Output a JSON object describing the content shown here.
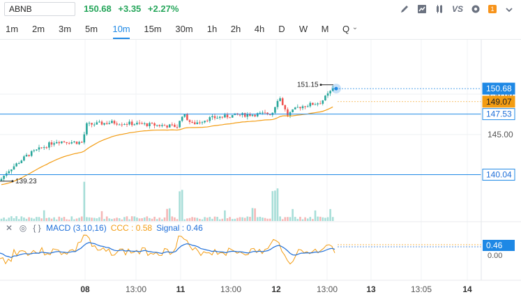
{
  "header": {
    "symbol": "ABNB",
    "price": "150.68",
    "change": "+3.35",
    "change_pct": "+2.27%"
  },
  "toolbar": {
    "icons": [
      "pencil-icon",
      "area-chart-icon",
      "candles-icon",
      "compare-icon",
      "settings-icon",
      "alert-icon"
    ],
    "compare_label": "VS",
    "alert_count": "1"
  },
  "timeframes": [
    "1m",
    "2m",
    "3m",
    "5m",
    "10m",
    "15m",
    "30m",
    "1h",
    "2h",
    "4h",
    "D",
    "W",
    "M",
    "Q"
  ],
  "active_timeframe": "10m",
  "price_axis": {
    "labels": [
      "150.00",
      "145.00"
    ],
    "tags": {
      "last": "150.68",
      "ma": "149.07",
      "line_upper": "147.53",
      "line_lower": "140.04"
    }
  },
  "annotations": {
    "high": "151.15",
    "low": "139.23"
  },
  "macd": {
    "name": "MACD (3,10,16)",
    "ccc": "CCC : 0.58",
    "signal": "Signal : 0.46",
    "tag": "0.46",
    "zero_label": "0.00"
  },
  "x_axis": [
    "08",
    "13:00",
    "11",
    "13:00",
    "12",
    "13:00",
    "13",
    "13:05",
    "14"
  ],
  "colors": {
    "up": "#26a69a",
    "down": "#ef5350",
    "accent": "#1e88e5",
    "ma": "#f39c12",
    "macd": "#1e6fd9"
  }
}
